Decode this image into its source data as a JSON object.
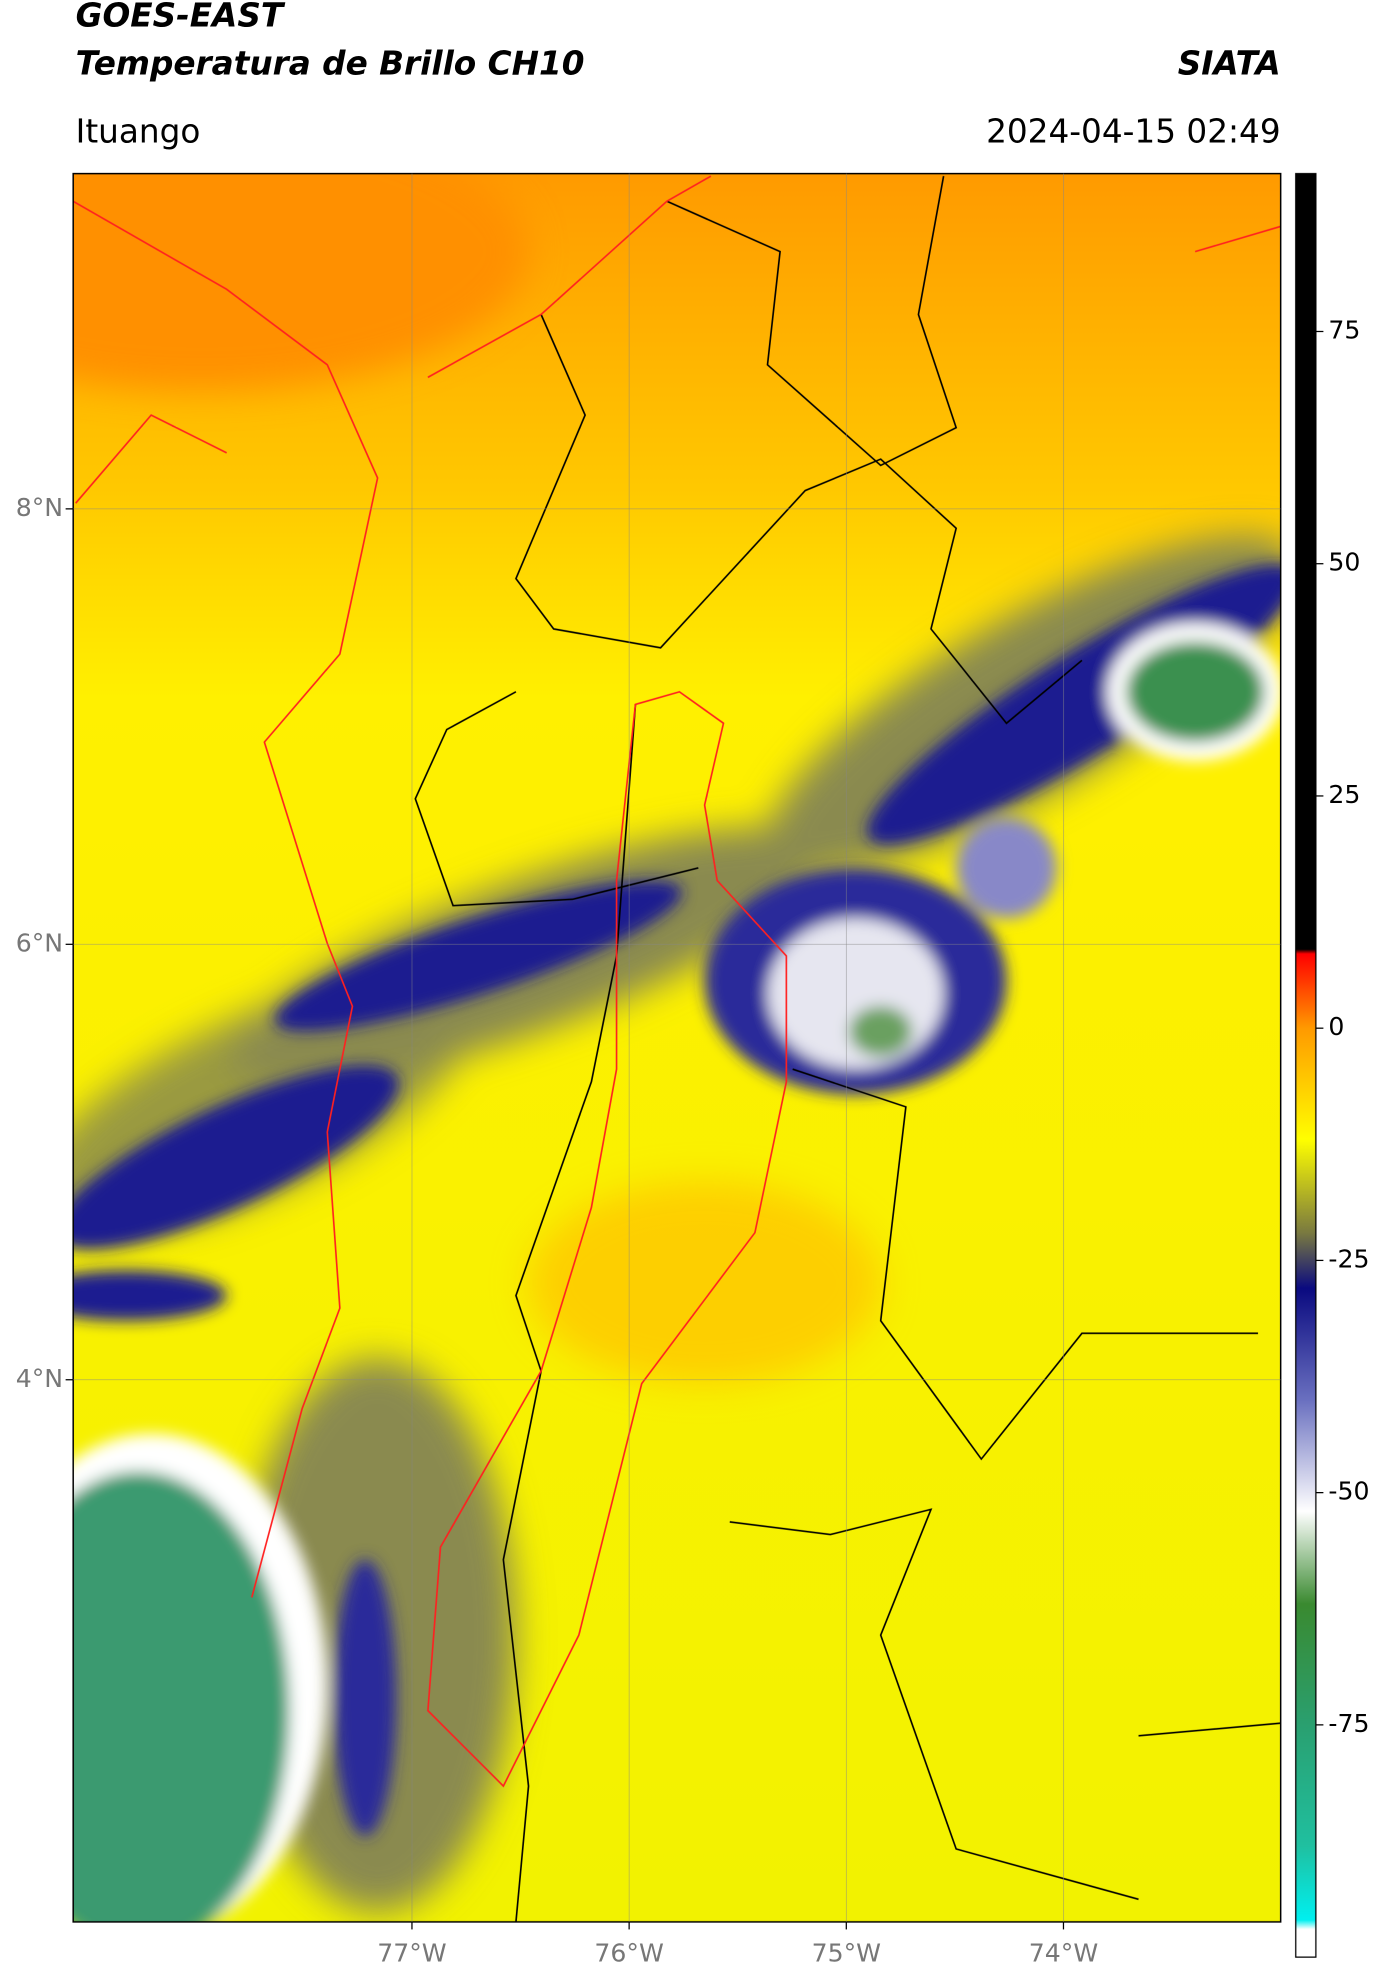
{
  "header": {
    "title": "GOES-EAST",
    "subtitle": "Temperatura de Brillo CH10",
    "brand": "SIATA",
    "location": "Ituango",
    "datetime": "2024-04-15 02:49"
  },
  "map": {
    "xlim": [
      -78.56,
      -73.0
    ],
    "ylim": [
      1.51,
      9.54
    ],
    "xticks": [
      {
        "value": -77,
        "label": "77°W"
      },
      {
        "value": -76,
        "label": "76°W"
      },
      {
        "value": -75,
        "label": "75°W"
      },
      {
        "value": -74,
        "label": "74°W"
      }
    ],
    "yticks": [
      {
        "value": 8,
        "label": "8°N"
      },
      {
        "value": 6,
        "label": "6°N"
      },
      {
        "value": 4,
        "label": "4°N"
      }
    ],
    "grid": true
  },
  "colorbar": {
    "lim": [
      -100,
      92
    ],
    "ticks": [
      75,
      50,
      25,
      0,
      -25,
      -50,
      -75
    ],
    "stops": [
      {
        "value": -100,
        "color": "#ffffff"
      },
      {
        "value": -97,
        "color": "#ffffff"
      },
      {
        "value": -96,
        "color": "#00f0f0"
      },
      {
        "value": -88,
        "color": "#20c0a0"
      },
      {
        "value": -75,
        "color": "#2aa070"
      },
      {
        "value": -62,
        "color": "#3a8a30"
      },
      {
        "value": -52,
        "color": "#ffffff"
      },
      {
        "value": -40,
        "color": "#6a70c0"
      },
      {
        "value": -28,
        "color": "#0a0a80"
      },
      {
        "value": -22,
        "color": "#7a7a40"
      },
      {
        "value": -12,
        "color": "#ffff00"
      },
      {
        "value": 0,
        "color": "#ff9a00"
      },
      {
        "value": 8,
        "color": "#ff0000"
      },
      {
        "value": 8.5,
        "color": "#000000"
      },
      {
        "value": 92,
        "color": "#000000"
      }
    ]
  }
}
